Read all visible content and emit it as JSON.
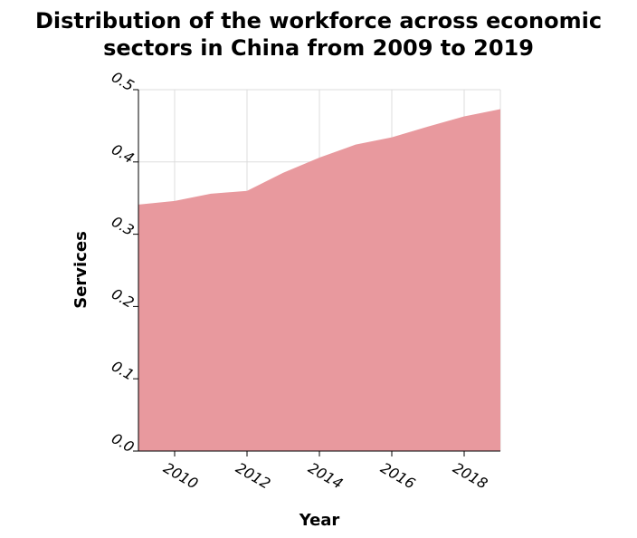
{
  "chart_data": {
    "type": "area",
    "title": "Distribution of the workforce across economic sectors in China from 2009 to 2019",
    "title_lines": [
      "Distribution of the workforce across economic",
      "sectors in China from 2009 to 2019"
    ],
    "xlabel": "Year",
    "ylabel": "Services",
    "xlim": [
      2009,
      2019
    ],
    "ylim": [
      0,
      0.5
    ],
    "x_ticks": [
      2010,
      2012,
      2014,
      2016,
      2018
    ],
    "y_ticks": [
      0.0,
      0.1,
      0.2,
      0.3,
      0.4,
      0.5
    ],
    "y_tick_labels": [
      "0.0",
      "0.1",
      "0.2",
      "0.3",
      "0.4",
      "0.5"
    ],
    "grid": true,
    "fill_color": "#e8999e",
    "series": [
      {
        "x": [
          2009,
          2010,
          2011,
          2012,
          2013,
          2014,
          2015,
          2016,
          2017,
          2018,
          2019
        ],
        "values": [
          0.341,
          0.346,
          0.356,
          0.36,
          0.385,
          0.406,
          0.424,
          0.434,
          0.449,
          0.463,
          0.473
        ]
      }
    ]
  }
}
